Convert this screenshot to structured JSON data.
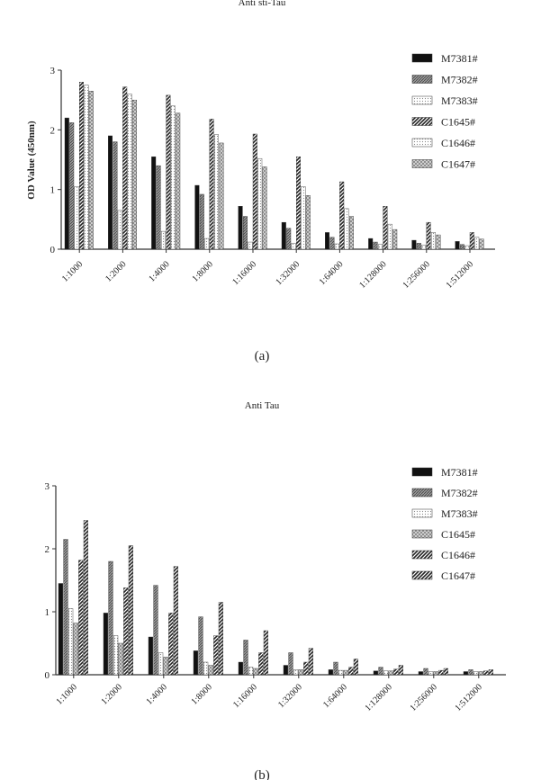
{
  "chart_data": [
    {
      "panel_id": "a",
      "type": "bar",
      "title": "Anti sti-Tau",
      "ylabel": "OD Value (450nm)",
      "xlabel": "",
      "ylim": [
        0,
        3
      ],
      "yticks": [
        0,
        1,
        2,
        3
      ],
      "grid": false,
      "legend_position": "right",
      "caption": "(a)",
      "categories": [
        "1:1000",
        "1:2000",
        "1:4000",
        "1:8000",
        "1:16000",
        "1:32000",
        "1:64000",
        "1:128000",
        "1:256000",
        "1:512000"
      ],
      "series": [
        {
          "name": "M7381#",
          "pattern": "solid",
          "values": [
            2.2,
            1.9,
            1.55,
            1.07,
            0.72,
            0.45,
            0.28,
            0.18,
            0.15,
            0.13
          ]
        },
        {
          "name": "M7382#",
          "pattern": "dense",
          "values": [
            2.12,
            1.8,
            1.4,
            0.92,
            0.55,
            0.35,
            0.2,
            0.12,
            0.1,
            0.08
          ]
        },
        {
          "name": "M7383#",
          "pattern": "dots",
          "values": [
            1.05,
            0.65,
            0.3,
            0.18,
            0.12,
            0.1,
            0.09,
            0.08,
            0.07,
            0.06
          ]
        },
        {
          "name": "C1645#",
          "pattern": "stripe",
          "values": [
            2.8,
            2.72,
            2.58,
            2.18,
            1.93,
            1.55,
            1.13,
            0.72,
            0.45,
            0.28
          ]
        },
        {
          "name": "C1646#",
          "pattern": "dots",
          "values": [
            2.75,
            2.6,
            2.4,
            1.92,
            1.52,
            1.05,
            0.68,
            0.42,
            0.28,
            0.2
          ]
        },
        {
          "name": "C1647#",
          "pattern": "hatch",
          "values": [
            2.65,
            2.5,
            2.28,
            1.78,
            1.38,
            0.9,
            0.55,
            0.33,
            0.24,
            0.17
          ]
        }
      ]
    },
    {
      "panel_id": "b",
      "type": "bar",
      "title": "Anti Tau",
      "ylabel": "",
      "xlabel": "",
      "ylim": [
        0,
        3
      ],
      "yticks": [
        0,
        1,
        2,
        3
      ],
      "grid": false,
      "legend_position": "right",
      "caption": "(b)",
      "categories": [
        "1:1000",
        "1:2000",
        "1:4000",
        "1:8000",
        "1:16000",
        "1:32000",
        "1:64000",
        "1:128000",
        "1:256000",
        "1:512000"
      ],
      "series": [
        {
          "name": "M7381#",
          "pattern": "solid",
          "values": [
            1.45,
            0.98,
            0.6,
            0.38,
            0.2,
            0.15,
            0.08,
            0.06,
            0.05,
            0.05
          ]
        },
        {
          "name": "M7382#",
          "pattern": "dense",
          "values": [
            2.15,
            1.8,
            1.42,
            0.92,
            0.55,
            0.35,
            0.2,
            0.12,
            0.1,
            0.08
          ]
        },
        {
          "name": "M7383#",
          "pattern": "dots",
          "values": [
            1.05,
            0.62,
            0.35,
            0.2,
            0.12,
            0.08,
            0.07,
            0.06,
            0.05,
            0.05
          ]
        },
        {
          "name": "C1645#",
          "pattern": "hatch",
          "values": [
            0.82,
            0.5,
            0.28,
            0.15,
            0.1,
            0.08,
            0.07,
            0.06,
            0.05,
            0.05
          ]
        },
        {
          "name": "C1646#",
          "pattern": "stripe",
          "values": [
            1.82,
            1.38,
            0.98,
            0.62,
            0.35,
            0.2,
            0.12,
            0.09,
            0.07,
            0.06
          ]
        },
        {
          "name": "C1647#",
          "pattern": "stripe",
          "values": [
            2.45,
            2.05,
            1.72,
            1.15,
            0.7,
            0.42,
            0.25,
            0.15,
            0.1,
            0.08
          ]
        }
      ]
    }
  ]
}
